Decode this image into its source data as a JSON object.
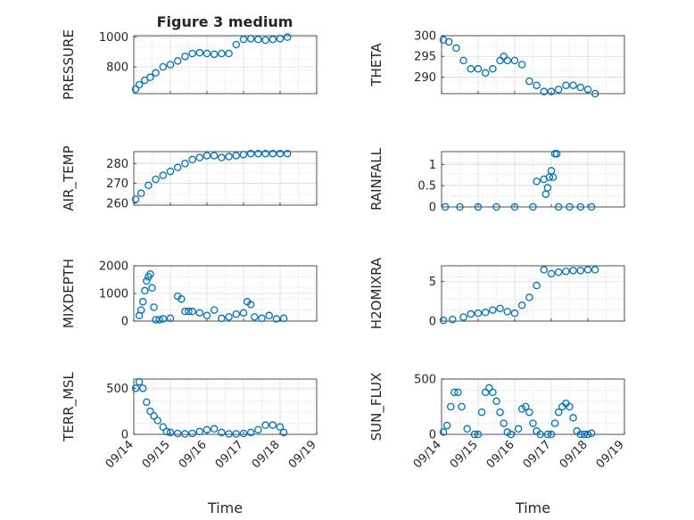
{
  "figure": {
    "title": "Figure 3 medium"
  },
  "chart_data": [
    {
      "type": "scatter",
      "ylabel": "PRESSURE",
      "xlabel": "",
      "ylim": [
        620,
        1010
      ],
      "yticks": [
        800,
        1000
      ],
      "ytick_labels": [
        "800",
        "1000"
      ],
      "xlim": [
        0,
        5
      ],
      "grid": true,
      "marker_color": "#0072BD",
      "title": "Figure 3 medium",
      "series": [
        {
          "x": [
            0.05,
            0.15,
            0.3,
            0.45,
            0.6,
            0.8,
            1.0,
            1.2,
            1.4,
            1.6,
            1.8,
            2.0,
            2.2,
            2.4,
            2.6,
            2.8,
            3.0,
            3.2,
            3.4,
            3.6,
            3.8,
            4.0,
            4.2
          ],
          "y": [
            650,
            680,
            710,
            730,
            760,
            800,
            815,
            840,
            870,
            890,
            895,
            890,
            885,
            890,
            890,
            950,
            985,
            990,
            985,
            980,
            985,
            990,
            1000
          ]
        }
      ]
    },
    {
      "type": "scatter",
      "ylabel": "THETA",
      "xlabel": "",
      "ylim": [
        286,
        300
      ],
      "yticks": [
        290,
        295,
        300
      ],
      "ytick_labels": [
        "290",
        "295",
        "300"
      ],
      "xlim": [
        0,
        5
      ],
      "grid": true,
      "marker_color": "#0072BD",
      "series": [
        {
          "x": [
            0.05,
            0.2,
            0.4,
            0.6,
            0.8,
            1.0,
            1.2,
            1.4,
            1.6,
            1.7,
            1.8,
            2.0,
            2.2,
            2.4,
            2.6,
            2.8,
            3.0,
            3.2,
            3.4,
            3.6,
            3.8,
            4.0,
            4.2
          ],
          "y": [
            299,
            298.5,
            297,
            294,
            292,
            292,
            291,
            292,
            294,
            295,
            294,
            294,
            293,
            289,
            288,
            286.5,
            286.5,
            287,
            288,
            288,
            287.5,
            287,
            286
          ]
        }
      ]
    },
    {
      "type": "scatter",
      "ylabel": "AIR_TEMP",
      "xlabel": "",
      "ylim": [
        259,
        286
      ],
      "yticks": [
        260,
        270,
        280
      ],
      "ytick_labels": [
        "260",
        "270",
        "280"
      ],
      "xlim": [
        0,
        5
      ],
      "grid": true,
      "marker_color": "#0072BD",
      "series": [
        {
          "x": [
            0.05,
            0.2,
            0.4,
            0.6,
            0.8,
            1.0,
            1.2,
            1.4,
            1.6,
            1.8,
            2.0,
            2.2,
            2.4,
            2.6,
            2.8,
            3.0,
            3.2,
            3.4,
            3.6,
            3.8,
            4.0,
            4.2
          ],
          "y": [
            262,
            265,
            269,
            272,
            274,
            276,
            278,
            280,
            282,
            283,
            284,
            284,
            283,
            283.5,
            284,
            284.5,
            285,
            285,
            285,
            285,
            285,
            285
          ]
        }
      ]
    },
    {
      "type": "scatter",
      "ylabel": "RAINFALL",
      "xlabel": "",
      "ylim": [
        0,
        1.3
      ],
      "yticks": [
        0,
        0.5,
        1
      ],
      "ytick_labels": [
        "0",
        "0.5",
        "1"
      ],
      "xlim": [
        0,
        5
      ],
      "grid": true,
      "marker_color": "#0072BD",
      "series": [
        {
          "x": [
            0.1,
            0.5,
            1.0,
            1.5,
            2.0,
            2.5,
            2.6,
            2.8,
            2.85,
            2.9,
            2.95,
            3.0,
            3.05,
            3.1,
            3.15,
            3.2,
            3.5,
            3.8,
            4.1
          ],
          "y": [
            0,
            0,
            0,
            0,
            0,
            0,
            0.6,
            0.65,
            0.3,
            0.45,
            0.7,
            0.85,
            0.7,
            1.25,
            1.25,
            0,
            0,
            0,
            0
          ]
        }
      ]
    },
    {
      "type": "scatter",
      "ylabel": "MIXDEPTH",
      "xlabel": "",
      "ylim": [
        0,
        2000
      ],
      "yticks": [
        0,
        1000,
        2000
      ],
      "ytick_labels": [
        "0",
        "1000",
        "2000"
      ],
      "xlim": [
        0,
        5
      ],
      "grid": true,
      "marker_color": "#0072BD",
      "series": [
        {
          "x": [
            0.15,
            0.2,
            0.25,
            0.3,
            0.35,
            0.4,
            0.45,
            0.5,
            0.55,
            0.6,
            0.7,
            0.8,
            1.0,
            1.2,
            1.3,
            1.4,
            1.5,
            1.6,
            1.8,
            2.0,
            2.2,
            2.4,
            2.6,
            2.8,
            3.0,
            3.1,
            3.2,
            3.3,
            3.5,
            3.7,
            3.9,
            4.1
          ],
          "y": [
            200,
            400,
            700,
            1100,
            1450,
            1600,
            1700,
            1200,
            500,
            50,
            50,
            80,
            100,
            900,
            800,
            350,
            350,
            350,
            300,
            200,
            400,
            100,
            150,
            250,
            300,
            700,
            600,
            150,
            100,
            200,
            80,
            100
          ]
        }
      ]
    },
    {
      "type": "scatter",
      "ylabel": "H2OMIXRA",
      "xlabel": "",
      "ylim": [
        0,
        7
      ],
      "yticks": [
        0,
        5
      ],
      "ytick_labels": [
        "0",
        "5"
      ],
      "xlim": [
        0,
        5
      ],
      "grid": true,
      "marker_color": "#0072BD",
      "series": [
        {
          "x": [
            0.05,
            0.3,
            0.6,
            0.8,
            1.0,
            1.2,
            1.4,
            1.6,
            1.8,
            2.0,
            2.2,
            2.4,
            2.6,
            2.8,
            3.0,
            3.2,
            3.4,
            3.6,
            3.8,
            4.0,
            4.2
          ],
          "y": [
            0.1,
            0.2,
            0.5,
            0.9,
            1.0,
            1.1,
            1.4,
            1.6,
            1.2,
            1.0,
            2.0,
            3.0,
            4.5,
            6.5,
            6.0,
            6.2,
            6.3,
            6.4,
            6.4,
            6.5,
            6.5
          ]
        }
      ]
    },
    {
      "type": "scatter",
      "ylabel": "TERR_MSL",
      "xlabel": "Time",
      "ylim": [
        0,
        600
      ],
      "yticks": [
        0,
        500
      ],
      "ytick_labels": [
        "0",
        "500"
      ],
      "xlim": [
        0,
        5
      ],
      "grid": true,
      "marker_color": "#0072BD",
      "xticks": [
        0,
        1,
        2,
        3,
        4,
        5
      ],
      "xtick_labels": [
        "09/14",
        "09/15",
        "09/16",
        "09/17",
        "09/18",
        "09/19"
      ],
      "series": [
        {
          "x": [
            0.05,
            0.15,
            0.25,
            0.35,
            0.45,
            0.55,
            0.65,
            0.8,
            0.9,
            1.0,
            1.2,
            1.4,
            1.6,
            1.8,
            2.0,
            2.2,
            2.4,
            2.6,
            2.8,
            3.0,
            3.2,
            3.4,
            3.6,
            3.8,
            4.0,
            4.1
          ],
          "y": [
            500,
            570,
            500,
            350,
            250,
            200,
            150,
            80,
            30,
            20,
            10,
            5,
            10,
            30,
            50,
            60,
            20,
            5,
            5,
            10,
            20,
            50,
            100,
            100,
            80,
            20
          ]
        }
      ]
    },
    {
      "type": "scatter",
      "ylabel": "SUN_FLUX",
      "xlabel": "Time",
      "ylim": [
        0,
        500
      ],
      "yticks": [
        0,
        500
      ],
      "ytick_labels": [
        "0",
        "500"
      ],
      "xlim": [
        0,
        5
      ],
      "grid": true,
      "marker_color": "#0072BD",
      "xticks": [
        0,
        1,
        2,
        3,
        4,
        5
      ],
      "xtick_labels": [
        "09/14",
        "09/15",
        "09/16",
        "09/17",
        "09/18",
        "09/19"
      ],
      "series": [
        {
          "x": [
            0.05,
            0.15,
            0.25,
            0.35,
            0.45,
            0.55,
            0.7,
            0.9,
            1.0,
            1.1,
            1.2,
            1.3,
            1.4,
            1.5,
            1.6,
            1.7,
            1.8,
            1.9,
            2.1,
            2.2,
            2.3,
            2.4,
            2.5,
            2.6,
            2.7,
            2.9,
            3.0,
            3.1,
            3.2,
            3.3,
            3.4,
            3.5,
            3.6,
            3.7,
            3.8,
            3.9,
            4.0,
            4.1
          ],
          "y": [
            20,
            80,
            250,
            380,
            380,
            250,
            50,
            0,
            0,
            200,
            380,
            420,
            380,
            300,
            200,
            100,
            20,
            0,
            50,
            230,
            250,
            200,
            100,
            30,
            0,
            0,
            0,
            100,
            200,
            250,
            280,
            250,
            150,
            30,
            0,
            0,
            0,
            10
          ]
        }
      ]
    }
  ]
}
